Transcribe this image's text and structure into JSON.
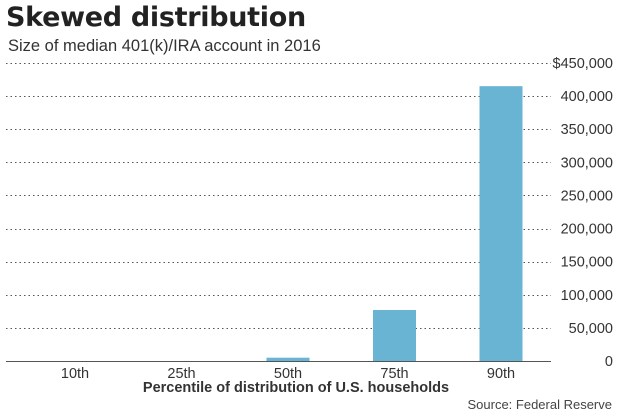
{
  "title": "Skewed distribution",
  "subtitle": "Size of median 401(k)/IRA account in 2016",
  "source": "Source: Federal Reserve",
  "colors": {
    "bar": "#6ab4d3",
    "grid": "#555555",
    "text": "#333333"
  },
  "chart_data": {
    "type": "bar",
    "title": "Skewed distribution",
    "subtitle": "Size of median 401(k)/IRA account in 2016",
    "xlabel": "Percentile of distribution of U.S. households",
    "ylabel": "",
    "categories": [
      "10th",
      "25th",
      "50th",
      "75th",
      "90th"
    ],
    "values": [
      0,
      0,
      5000,
      77000,
      415000
    ],
    "ylim": [
      0,
      450000
    ],
    "yticks": [
      0,
      50000,
      100000,
      150000,
      200000,
      250000,
      300000,
      350000,
      400000,
      450000
    ],
    "ytick_labels": [
      "0",
      "50,000",
      "100,000",
      "150,000",
      "200,000",
      "250,000",
      "300,000",
      "350,000",
      "400,000",
      "$450,000"
    ],
    "grid": true,
    "y_axis_side": "right"
  }
}
